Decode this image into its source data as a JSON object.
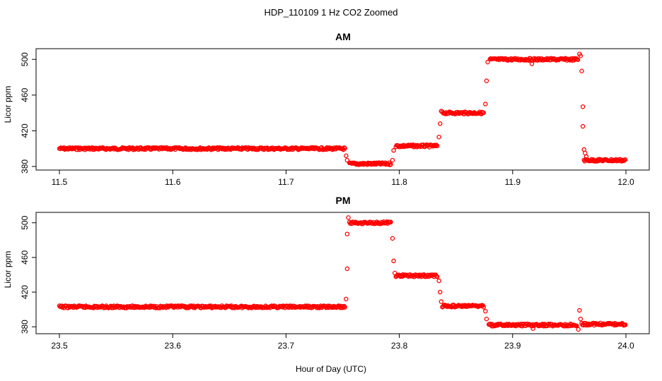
{
  "figure": {
    "title": "HDP_110109  1 Hz CO2 Zoomed",
    "xlabel": "Hour of Day (UTC)"
  },
  "colors": {
    "points": "#ff0000",
    "axes": "#000000",
    "background": "#ffffff"
  },
  "chart_data": [
    {
      "type": "scatter",
      "title": "AM",
      "xlabel": "",
      "ylabel": "Licor ppm",
      "xlim": [
        11.5,
        12.0
      ],
      "ylim": [
        376,
        512
      ],
      "xticks": [
        "11.5",
        "11.6",
        "11.7",
        "11.8",
        "11.9",
        "12.0"
      ],
      "yticks": [
        "380",
        "420",
        "460",
        "500"
      ],
      "grid": false,
      "series": [
        {
          "segments": [
            {
              "x": [
                11.5,
                11.752
              ],
              "y": 400
            },
            {
              "x": [
                11.756,
                11.793
              ],
              "y": 383
            },
            {
              "x": [
                11.797,
                11.834
              ],
              "y": 403
            },
            {
              "x": [
                11.838,
                11.875
              ],
              "y": 440
            },
            {
              "x": [
                11.88,
                11.958
              ],
              "y": 500
            },
            {
              "x": [
                11.963,
                12.0
              ],
              "y": 387
            }
          ],
          "points": [
            {
              "x": 11.753,
              "y": 392
            },
            {
              "x": 11.754,
              "y": 387
            },
            {
              "x": 11.794,
              "y": 387
            },
            {
              "x": 11.795,
              "y": 398
            },
            {
              "x": 11.835,
              "y": 413
            },
            {
              "x": 11.836,
              "y": 428
            },
            {
              "x": 11.837,
              "y": 442
            },
            {
              "x": 11.876,
              "y": 450
            },
            {
              "x": 11.877,
              "y": 476
            },
            {
              "x": 11.878,
              "y": 497
            },
            {
              "x": 11.917,
              "y": 495
            },
            {
              "x": 11.959,
              "y": 506
            },
            {
              "x": 11.96,
              "y": 504
            },
            {
              "x": 11.961,
              "y": 487
            },
            {
              "x": 11.962,
              "y": 447
            },
            {
              "x": 11.962,
              "y": 425
            },
            {
              "x": 11.963,
              "y": 399
            },
            {
              "x": 11.964,
              "y": 395
            },
            {
              "x": 11.965,
              "y": 391
            }
          ]
        }
      ]
    },
    {
      "type": "scatter",
      "title": "PM",
      "xlabel": "",
      "ylabel": "Licor ppm",
      "xlim": [
        23.5,
        24.0
      ],
      "ylim": [
        372,
        512
      ],
      "xticks": [
        "23.5",
        "23.6",
        "23.7",
        "23.8",
        "23.9",
        "24.0"
      ],
      "yticks": [
        "380",
        "420",
        "460",
        "500"
      ],
      "grid": false,
      "series": [
        {
          "segments": [
            {
              "x": [
                23.5,
                23.752
              ],
              "y": 403
            },
            {
              "x": [
                23.756,
                23.793
              ],
              "y": 500
            },
            {
              "x": [
                23.797,
                23.834
              ],
              "y": 439
            },
            {
              "x": [
                23.838,
                23.875
              ],
              "y": 404
            },
            {
              "x": [
                23.879,
                23.957
              ],
              "y": 382
            },
            {
              "x": [
                23.961,
                24.0
              ],
              "y": 383
            }
          ],
          "points": [
            {
              "x": 23.753,
              "y": 412
            },
            {
              "x": 23.754,
              "y": 447
            },
            {
              "x": 23.754,
              "y": 487
            },
            {
              "x": 23.755,
              "y": 506
            },
            {
              "x": 23.794,
              "y": 482
            },
            {
              "x": 23.795,
              "y": 456
            },
            {
              "x": 23.796,
              "y": 442
            },
            {
              "x": 23.835,
              "y": 433
            },
            {
              "x": 23.836,
              "y": 420
            },
            {
              "x": 23.837,
              "y": 409
            },
            {
              "x": 23.876,
              "y": 398
            },
            {
              "x": 23.877,
              "y": 389
            },
            {
              "x": 23.918,
              "y": 378
            },
            {
              "x": 23.958,
              "y": 377
            },
            {
              "x": 23.959,
              "y": 399
            },
            {
              "x": 23.96,
              "y": 389
            }
          ]
        }
      ]
    }
  ]
}
